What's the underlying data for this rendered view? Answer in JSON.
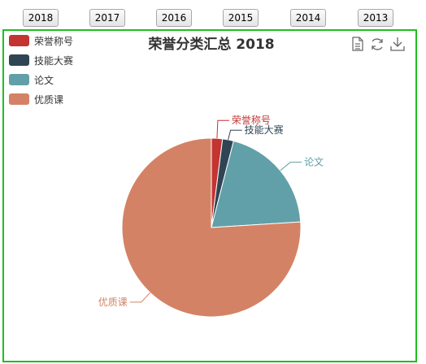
{
  "year_buttons": [
    "2018",
    "2017",
    "2016",
    "2015",
    "2014",
    "2013"
  ],
  "toolbox": [
    "data-view-icon",
    "restore-icon",
    "save-image-icon"
  ],
  "chart_data": {
    "type": "pie",
    "title": "荣誉分类汇总 2018",
    "legend_position": "top-left",
    "categories": [
      "荣誉称号",
      "技能大赛",
      "论文",
      "优质课"
    ],
    "values": [
      2,
      2,
      20,
      76
    ],
    "colors": [
      "#c23531",
      "#2f4554",
      "#61a0a8",
      "#d48265"
    ]
  }
}
